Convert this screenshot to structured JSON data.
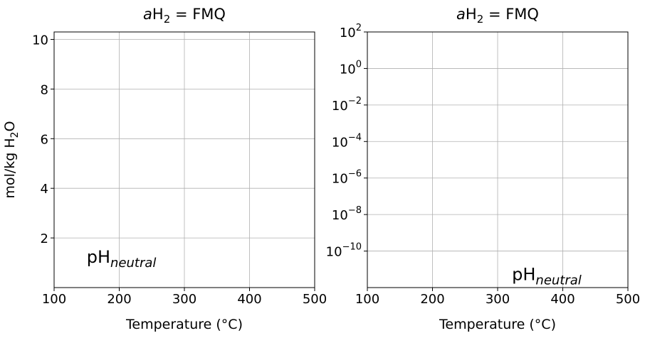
{
  "chart_data": [
    {
      "type": "line",
      "title": {
        "prefix": "a",
        "main": "H",
        "sub": "2",
        "suffix": " = FMQ"
      },
      "xlabel": "Temperature (°C)",
      "ylabel": {
        "prefix": "mol/kg H",
        "sub": "2",
        "suffix": "O"
      },
      "xlim": [
        100,
        500
      ],
      "ylim": [
        0,
        10.3
      ],
      "yscale": "linear",
      "xticks": [
        100,
        200,
        300,
        400,
        500
      ],
      "yticks": [
        2,
        4,
        6,
        8,
        10
      ],
      "grid": true,
      "series": [],
      "annotation": {
        "text": "pH",
        "sub": "neutral",
        "x": 150,
        "y": 1.0
      }
    },
    {
      "type": "line",
      "title": {
        "prefix": "a",
        "main": "H",
        "sub": "2",
        "suffix": " = FMQ"
      },
      "xlabel": "Temperature (°C)",
      "xlim": [
        100,
        500
      ],
      "ylim": [
        -12,
        2
      ],
      "yscale": "log",
      "xticks": [
        100,
        200,
        300,
        400,
        500
      ],
      "yticks": [
        -10,
        -8,
        -6,
        -4,
        -2,
        0,
        2
      ],
      "ytick_base": "10",
      "grid": true,
      "series": [],
      "annotation": {
        "text": "pH",
        "sub": "neutral",
        "x": 322,
        "y": -11.6
      }
    }
  ],
  "colors": {
    "axes": "#000000",
    "grid": "#b0b0b0",
    "background": "#ffffff"
  }
}
